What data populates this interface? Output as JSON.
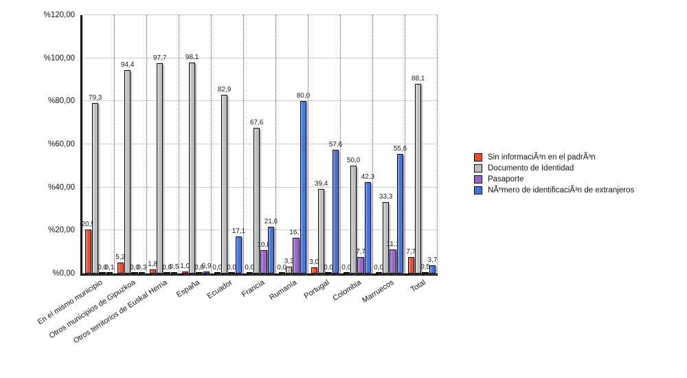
{
  "chart_data": {
    "type": "bar",
    "title": "",
    "categories": [
      "En el mismo municipio",
      "Otros municipios de Gipuzkoa",
      "Otros territorios de Euskal Herria",
      "España",
      "Ecuador",
      "Francia",
      "Rumanía",
      "Portugal",
      "Colombia",
      "Marruecos",
      "Total"
    ],
    "series": [
      {
        "name": "Sin informaciÃ³n en el padrÃ³n",
        "color": "#ee4c30",
        "color_light": "#f8927d",
        "values": [
          20.5,
          5.2,
          1.8,
          1.0,
          0.0,
          0.0,
          0.0,
          3.0,
          0.0,
          0.0,
          7.7
        ]
      },
      {
        "name": "Documento de Identidad",
        "color": "#bdbdbd",
        "color_light": "#e2e2e2",
        "values": [
          79.3,
          94.4,
          97.7,
          98.1,
          82.9,
          67.6,
          3.3,
          39.4,
          50.0,
          33.3,
          88.1
        ]
      },
      {
        "name": "Pasaporte",
        "color": "#9966cc",
        "color_light": "#c0a0e4",
        "values": [
          0.0,
          0.0,
          0.0,
          0.0,
          0.0,
          10.8,
          16.7,
          0.0,
          7.7,
          11.1,
          0.5
        ]
      },
      {
        "name": "NÃºmero de identificaciÃ³n de extranjeros",
        "color": "#4374dc",
        "color_light": "#8fabec",
        "values": [
          0.1,
          0.3,
          0.5,
          0.9,
          17.1,
          21.6,
          80.0,
          57.6,
          42.3,
          55.6,
          3.7
        ]
      }
    ],
    "ylim": [
      0,
      120
    ],
    "ytick_step": 20,
    "ytick_labels": [
      "%0,00",
      "%20,00",
      "%40,00",
      "%60,00",
      "%80,00",
      "%100,00",
      "%120,00"
    ],
    "value_label_decimal_separator": ",",
    "grid": "horizontal solid gray lines each 20%; vertical dotted category separators",
    "legend_position": "right",
    "axis_color": "#000000",
    "grid_color": "#cccccc"
  }
}
